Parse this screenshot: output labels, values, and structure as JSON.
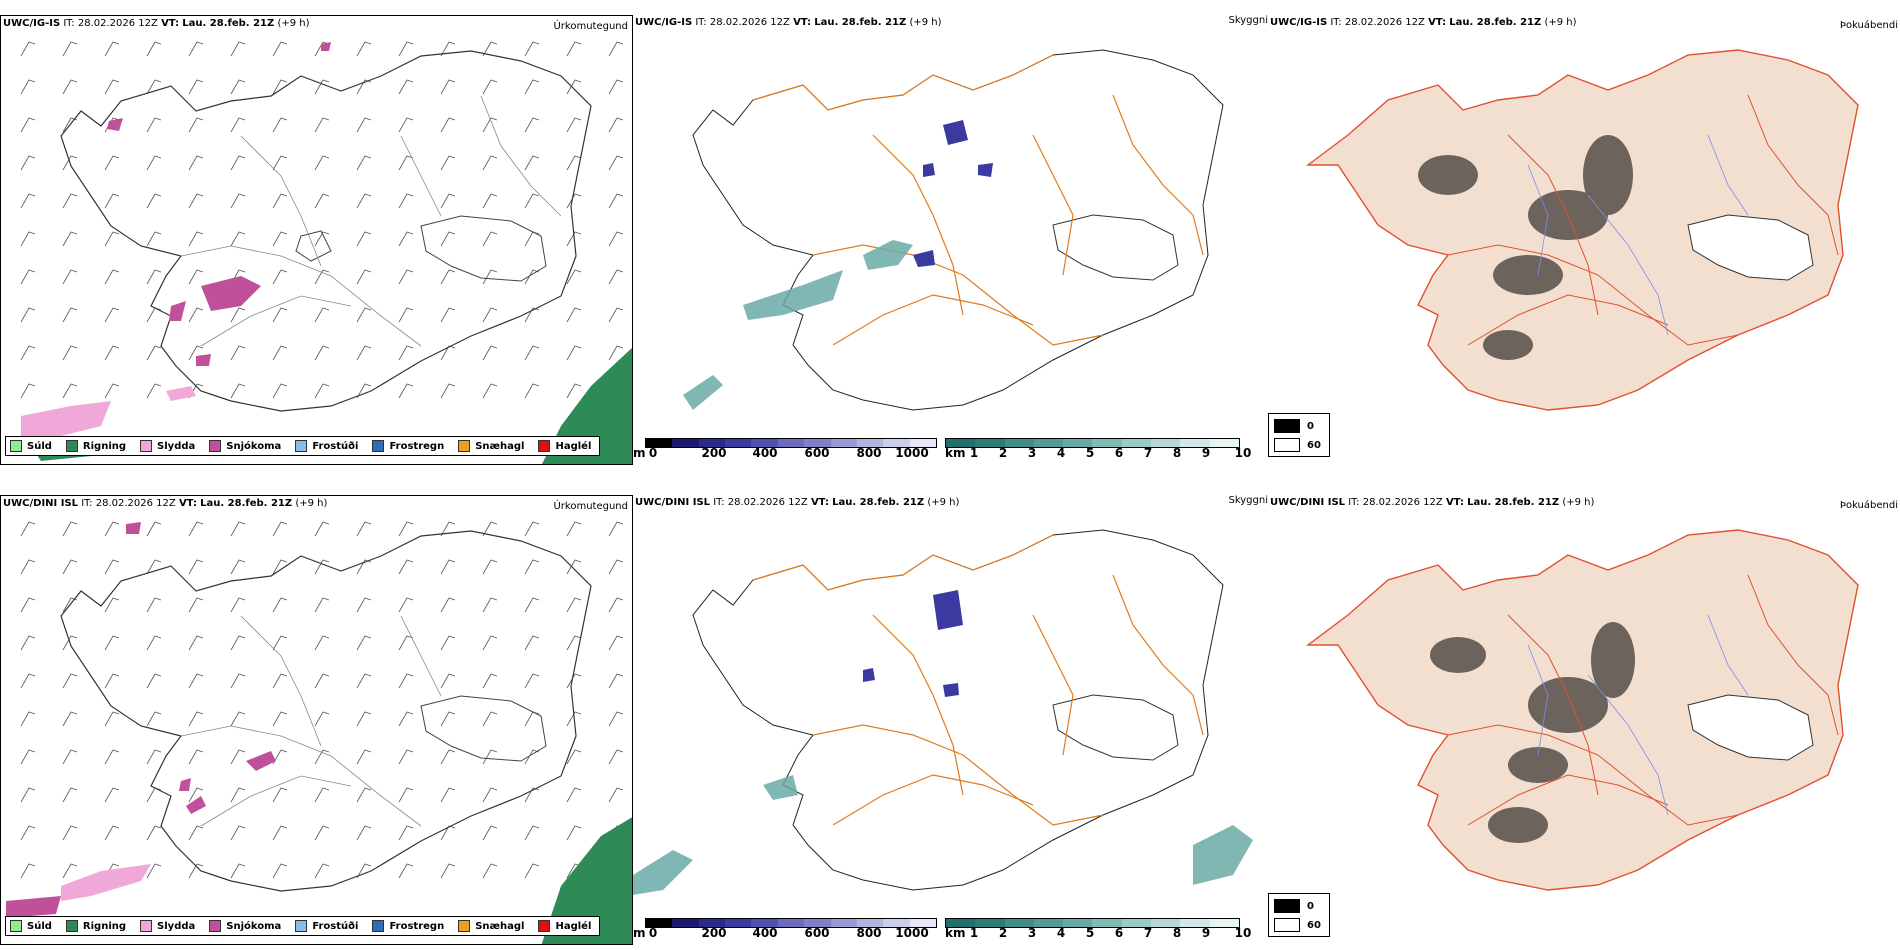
{
  "rows": [
    {
      "model": "UWC/IG-IS",
      "it_label": "IT:",
      "it_value": "28.02.2026 12Z",
      "vt_label": "VT:",
      "vt_value": "Lau. 28.feb. 21Z",
      "lead": "(+9 h)"
    },
    {
      "model": "UWC/DINI ISL",
      "it_label": "IT:",
      "it_value": "28.02.2026 12Z",
      "vt_label": "VT:",
      "vt_value": "Lau. 28.feb. 21Z",
      "lead": "(+9 h)"
    }
  ],
  "panel_titles": {
    "precip": "Úrkomutegund",
    "cloud": "Skyggni",
    "fog": "Þokuábendi"
  },
  "precip_legend": [
    {
      "label": "Súld",
      "color": "#90ee90"
    },
    {
      "label": "Rigning",
      "color": "#2e8b57"
    },
    {
      "label": "Slydda",
      "color": "#f0a8d8"
    },
    {
      "label": "Snjókoma",
      "color": "#c0509a"
    },
    {
      "label": "Frostúði",
      "color": "#87bde8"
    },
    {
      "label": "Frostregn",
      "color": "#2f6eb5"
    },
    {
      "label": "Snæhagl",
      "color": "#f0a020"
    },
    {
      "label": "Haglél",
      "color": "#e01010"
    }
  ],
  "ceiling_scale": {
    "unit": "m",
    "ticks": [
      "0",
      "200",
      "400",
      "600",
      "800",
      "1000"
    ],
    "colors": [
      "#000000",
      "#191970",
      "#2a2a8a",
      "#3a3aa0",
      "#5050b0",
      "#6a6abf",
      "#8080c8",
      "#9a9ad4",
      "#b4b4e0",
      "#cdcdec",
      "#e6e6f6"
    ]
  },
  "visibility_scale": {
    "unit": "km",
    "ticks": [
      "1",
      "2",
      "3",
      "4",
      "5",
      "6",
      "7",
      "8",
      "9",
      "10"
    ],
    "colors": [
      "#1f6f6f",
      "#2e7d7a",
      "#3f8c88",
      "#549b97",
      "#6aaaa6",
      "#82bab6",
      "#9ccac6",
      "#b6d9d6",
      "#d0e8e6",
      "#e8f4f3"
    ]
  },
  "fog_legend": [
    {
      "label": "0",
      "color": "#000000"
    },
    {
      "label": "60",
      "color": "#ffffff"
    }
  ],
  "colors": {
    "rain": "#2e8b57",
    "snow": "#c0509a",
    "sleet": "#f0a8d8",
    "roads": "#e07b20",
    "land": "#f3dfcf",
    "rivers": "#7a8ef0",
    "fogroads": "#e05030"
  }
}
